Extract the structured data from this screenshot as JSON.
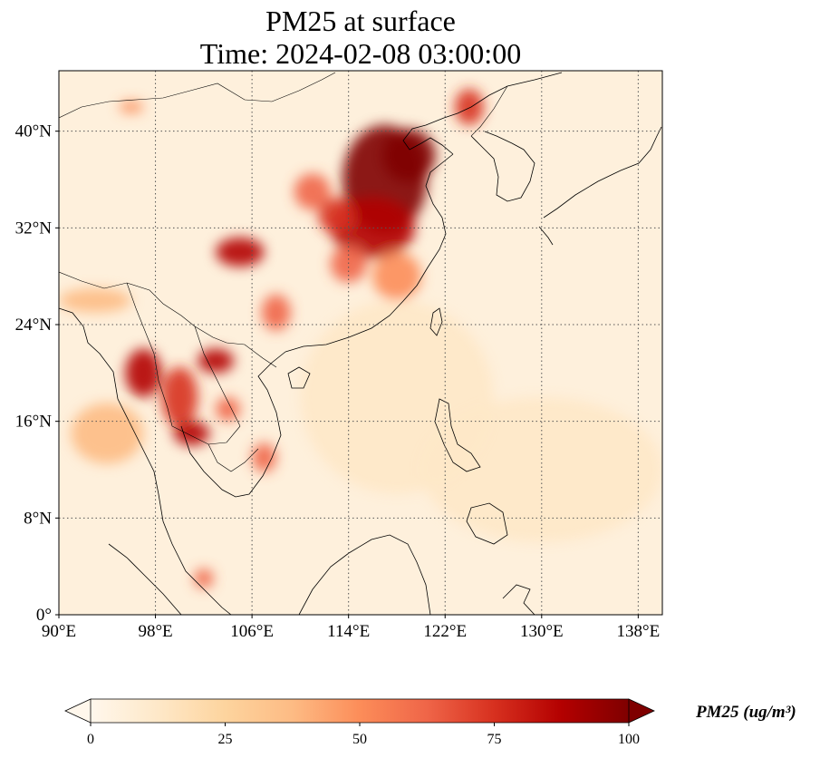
{
  "title": {
    "line1": "PM25 at surface",
    "line2": "Time: 2024-02-08 03:00:00"
  },
  "map": {
    "projection": "plate-carree",
    "lon_range": [
      90,
      140
    ],
    "lat_range": [
      0,
      45
    ],
    "lon_ticks": [
      {
        "value": 90,
        "label": "90°E"
      },
      {
        "value": 98,
        "label": "98°E"
      },
      {
        "value": 106,
        "label": "106°E"
      },
      {
        "value": 114,
        "label": "114°E"
      },
      {
        "value": 122,
        "label": "122°E"
      },
      {
        "value": 130,
        "label": "130°E"
      },
      {
        "value": 138,
        "label": "138°E"
      }
    ],
    "lat_ticks": [
      {
        "value": 0,
        "label": "0°"
      },
      {
        "value": 8,
        "label": "8°N"
      },
      {
        "value": 16,
        "label": "16°N"
      },
      {
        "value": 24,
        "label": "24°N"
      },
      {
        "value": 32,
        "label": "32°N"
      },
      {
        "value": 40,
        "label": "40°N"
      }
    ],
    "gridlines": "dotted"
  },
  "colorbar": {
    "label": "PM25 (ug/m³)",
    "colormap": "OrRd",
    "range": [
      0,
      100
    ],
    "extend": "both",
    "ticks": [
      {
        "value": 0,
        "label": "0"
      },
      {
        "value": 25,
        "label": "25"
      },
      {
        "value": 50,
        "label": "50"
      },
      {
        "value": 75,
        "label": "75"
      },
      {
        "value": 100,
        "label": "100"
      }
    ]
  },
  "chart_data": {
    "type": "heatmap",
    "variable": "PM25",
    "units": "ug/m3",
    "hotspots": [
      {
        "lon": 117,
        "lat": 36,
        "rlon": 3.5,
        "rlat": 4.5,
        "value": 100
      },
      {
        "lon": 119,
        "lat": 38,
        "rlon": 2.2,
        "rlat": 2.2,
        "value": 95
      },
      {
        "lon": 116,
        "lat": 32,
        "rlon": 3.5,
        "rlat": 2.5,
        "value": 85
      },
      {
        "lon": 113,
        "lat": 33,
        "rlon": 1.5,
        "rlat": 1.5,
        "value": 80
      },
      {
        "lon": 111,
        "lat": 35,
        "rlon": 1.5,
        "rlat": 1.5,
        "value": 60
      },
      {
        "lon": 118,
        "lat": 28,
        "rlon": 2.0,
        "rlat": 2.0,
        "value": 55
      },
      {
        "lon": 114,
        "lat": 29,
        "rlon": 1.5,
        "rlat": 1.5,
        "value": 60
      },
      {
        "lon": 105,
        "lat": 30,
        "rlon": 2.0,
        "rlat": 1.2,
        "value": 85
      },
      {
        "lon": 108,
        "lat": 25,
        "rlon": 1.2,
        "rlat": 1.5,
        "value": 60
      },
      {
        "lon": 103,
        "lat": 21,
        "rlon": 1.5,
        "rlat": 1.0,
        "value": 90
      },
      {
        "lon": 97,
        "lat": 20,
        "rlon": 1.5,
        "rlat": 2.0,
        "value": 85
      },
      {
        "lon": 100,
        "lat": 18,
        "rlon": 1.5,
        "rlat": 2.5,
        "value": 80
      },
      {
        "lon": 101,
        "lat": 15,
        "rlon": 1.5,
        "rlat": 1.0,
        "value": 90
      },
      {
        "lon": 104,
        "lat": 17,
        "rlon": 1.0,
        "rlat": 1.0,
        "value": 65
      },
      {
        "lon": 107,
        "lat": 13,
        "rlon": 1.0,
        "rlat": 1.2,
        "value": 60
      },
      {
        "lon": 94,
        "lat": 15,
        "rlon": 3.0,
        "rlat": 2.5,
        "value": 40
      },
      {
        "lon": 93,
        "lat": 26,
        "rlon": 3.0,
        "rlat": 1.0,
        "value": 40
      },
      {
        "lon": 124,
        "lat": 42,
        "rlon": 1.2,
        "rlat": 1.5,
        "value": 80
      },
      {
        "lon": 96,
        "lat": 42,
        "rlon": 1.0,
        "rlat": 0.5,
        "value": 45
      },
      {
        "lon": 102,
        "lat": 3,
        "rlon": 0.8,
        "rlat": 0.8,
        "value": 60
      },
      {
        "lon": 130,
        "lat": 12,
        "rlon": 10.0,
        "rlat": 6.0,
        "value": 15
      },
      {
        "lon": 118,
        "lat": 18,
        "rlon": 8.0,
        "rlat": 8.0,
        "value": 10
      }
    ]
  }
}
